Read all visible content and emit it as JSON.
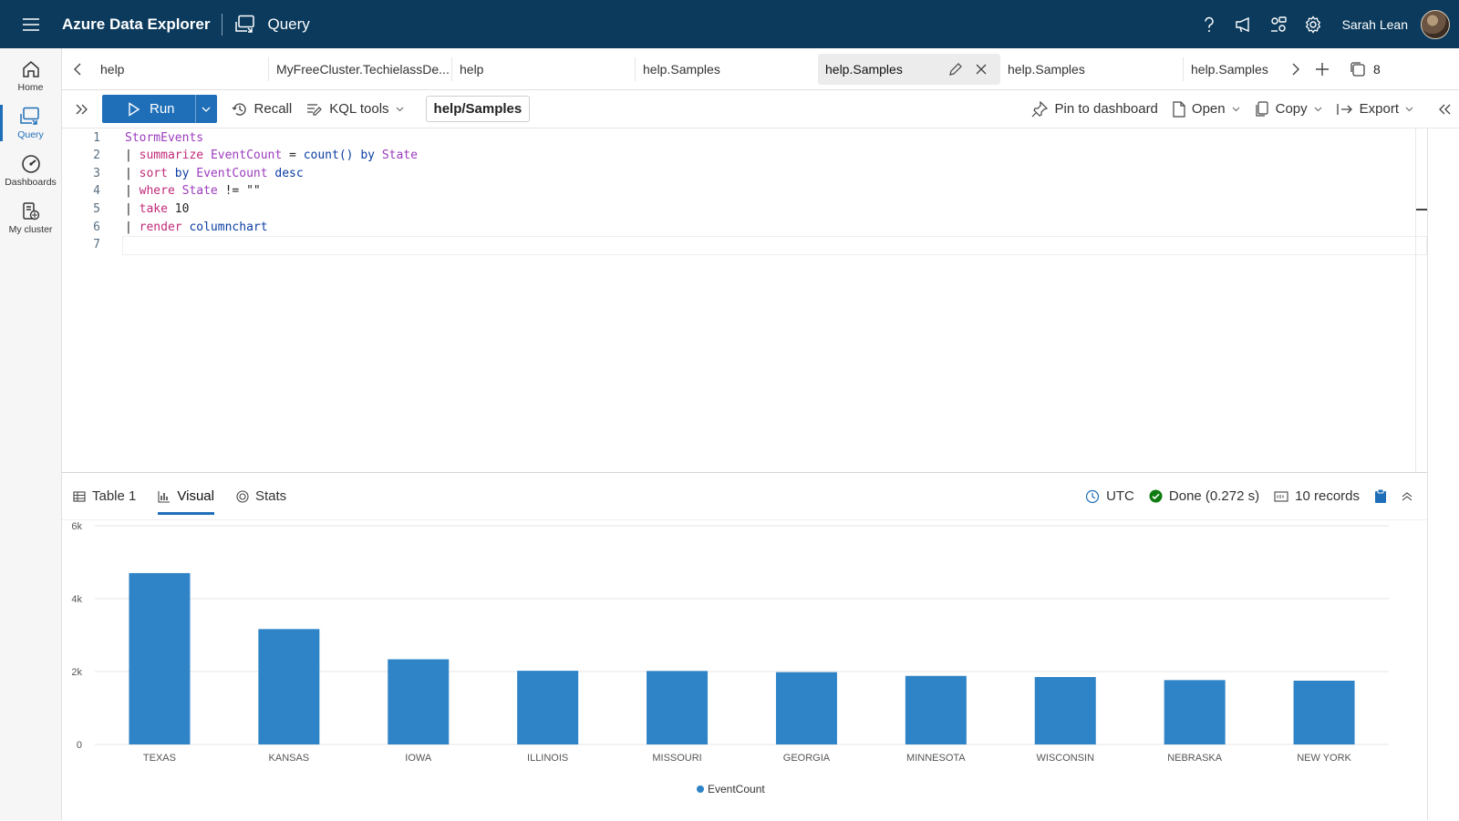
{
  "app": {
    "title": "Azure Data Explorer",
    "section": "Query",
    "user": "Sarah Lean"
  },
  "topbar": {
    "icons": [
      "help-icon",
      "feedback-icon",
      "share-icon",
      "settings-icon"
    ]
  },
  "nav": [
    {
      "label": "Home",
      "icon": "home-icon"
    },
    {
      "label": "Query",
      "icon": "query-icon",
      "active": true
    },
    {
      "label": "Dashboards",
      "icon": "dashboard-icon"
    },
    {
      "label": "My cluster",
      "icon": "cluster-icon"
    }
  ],
  "tabs": [
    {
      "label": "help"
    },
    {
      "label": "MyFreeCluster.TechielassDe..."
    },
    {
      "label": "help"
    },
    {
      "label": "help.Samples"
    },
    {
      "label": "help.Samples",
      "active": true
    },
    {
      "label": "help.Samples"
    },
    {
      "label": "help.Samples"
    }
  ],
  "tab_count": "8",
  "toolbar": {
    "run": "Run",
    "recall": "Recall",
    "kql_tools": "KQL tools",
    "scope": "help/Samples",
    "pin": "Pin to dashboard",
    "open": "Open",
    "copy": "Copy",
    "export": "Export"
  },
  "editor": {
    "line_numbers": [
      "1",
      "2",
      "3",
      "4",
      "5",
      "6",
      "7"
    ],
    "lines": [
      [
        {
          "t": "StormEvents",
          "c": "k-table"
        }
      ],
      [
        {
          "t": "| ",
          "c": "k-pipe"
        },
        {
          "t": "summarize ",
          "c": "k-op"
        },
        {
          "t": "EventCount",
          "c": "k-col"
        },
        {
          "t": " = ",
          "c": "k-pipe"
        },
        {
          "t": "count()",
          "c": "k-fn"
        },
        {
          "t": " by ",
          "c": "k-fn"
        },
        {
          "t": "State",
          "c": "k-col"
        }
      ],
      [
        {
          "t": "| ",
          "c": "k-pipe"
        },
        {
          "t": "sort ",
          "c": "k-op"
        },
        {
          "t": "by ",
          "c": "k-fn"
        },
        {
          "t": "EventCount",
          "c": "k-col"
        },
        {
          "t": " desc",
          "c": "k-fn"
        }
      ],
      [
        {
          "t": "| ",
          "c": "k-pipe"
        },
        {
          "t": "where ",
          "c": "k-op"
        },
        {
          "t": "State",
          "c": "k-col"
        },
        {
          "t": " != \"\"",
          "c": "k-pipe"
        }
      ],
      [
        {
          "t": "| ",
          "c": "k-pipe"
        },
        {
          "t": "take ",
          "c": "k-op"
        },
        {
          "t": "10",
          "c": "k-pipe"
        }
      ],
      [
        {
          "t": "| ",
          "c": "k-pipe"
        },
        {
          "t": "render ",
          "c": "k-op"
        },
        {
          "t": "columnchart",
          "c": "k-fn"
        }
      ],
      []
    ]
  },
  "results": {
    "tabs": [
      {
        "label": "Table 1",
        "icon": "table-icon"
      },
      {
        "label": "Visual",
        "icon": "chart-icon",
        "active": true
      },
      {
        "label": "Stats",
        "icon": "stats-icon"
      }
    ],
    "timezone": "UTC",
    "status": "Done (0.272 s)",
    "records": "10 records"
  },
  "chart_data": {
    "type": "bar",
    "categories": [
      "TEXAS",
      "KANSAS",
      "IOWA",
      "ILLINOIS",
      "MISSOURI",
      "GEORGIA",
      "MINNESOTA",
      "WISCONSIN",
      "NEBRASKA",
      "NEW YORK"
    ],
    "series": [
      {
        "name": "EventCount",
        "values": [
          4701,
          3166,
          2337,
          2022,
          2016,
          1983,
          1881,
          1850,
          1766,
          1750
        ],
        "color": "#2f84c7"
      }
    ],
    "yticks": [
      "0",
      "2k",
      "4k",
      "6k"
    ],
    "ylim": [
      0,
      6000
    ],
    "grid": true,
    "legend": "bottom-center"
  }
}
